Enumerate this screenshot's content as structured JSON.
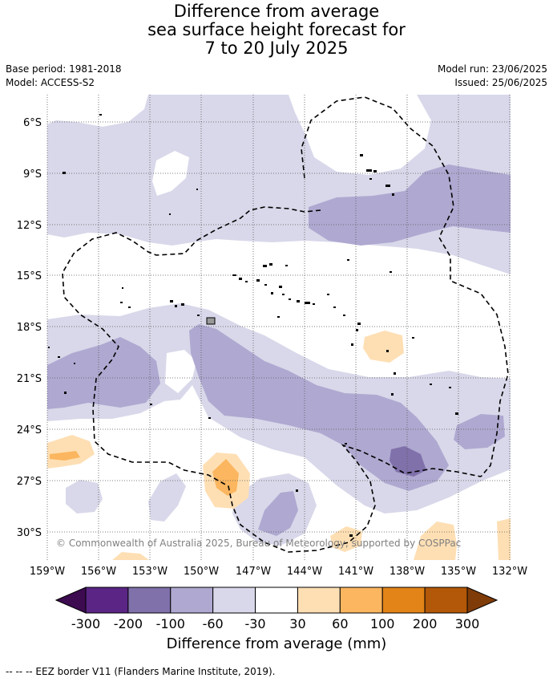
{
  "title": {
    "line1": "Difference from average",
    "line2": "sea surface height forecast for",
    "line3": "7 to 20 July 2025"
  },
  "meta": {
    "base_period": "Base period: 1981-2018",
    "model": "Model: ACCESS-S2",
    "model_run": "Model run: 23/06/2025",
    "issued": "Issued: 25/06/2025"
  },
  "map": {
    "lat_labels": [
      "6°S",
      "9°S",
      "12°S",
      "15°S",
      "18°S",
      "21°S",
      "24°S",
      "27°S",
      "30°S"
    ],
    "lon_labels": [
      "159°W",
      "156°W",
      "153°W",
      "150°W",
      "147°W",
      "144°W",
      "141°W",
      "138°W",
      "135°W",
      "132°W"
    ],
    "copyright": "© Commonwealth of Australia 2025, Bureau of Meteorology, supported by COSPPac"
  },
  "legend": {
    "ticks": [
      "-300",
      "-200",
      "-100",
      "-60",
      "-30",
      "30",
      "60",
      "100",
      "200",
      "300"
    ],
    "colors": [
      "#5a2585",
      "#8071ab",
      "#afa9d1",
      "#d8d8ea",
      "#ffffff",
      "#fedfb4",
      "#fbb65f",
      "#e28418",
      "#b25808"
    ],
    "under_color": "#3c0b50",
    "over_color": "#7f3b08",
    "title": "Difference from average (mm)"
  },
  "footnote": "-- -- -- EEZ border V11 (Flanders Marine Institute, 2019)."
}
